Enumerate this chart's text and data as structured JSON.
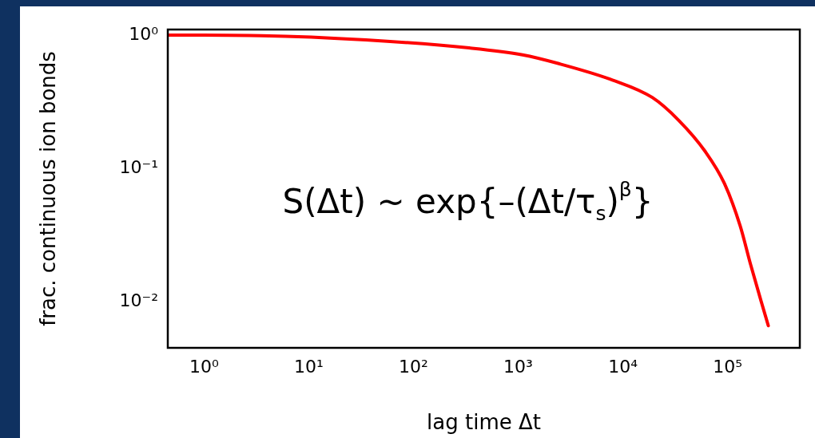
{
  "chart_data": {
    "type": "line",
    "xlabel": "lag time Δt",
    "ylabel": "frac. continuous ion bonds",
    "annotations": [
      "S(Δt) ~ exp{–(Δt/τ$_{s}$)$^{β}$}"
    ],
    "log": "xy",
    "grid": false,
    "legend": false,
    "marker": "none",
    "line_style": "solid",
    "xlim": [
      0.45,
      490000
    ],
    "ylim": [
      0.0045,
      1.1
    ],
    "xticks": [
      {
        "value": 1,
        "label": "10⁰"
      },
      {
        "value": 10,
        "label": "10¹"
      },
      {
        "value": 100,
        "label": "10²"
      },
      {
        "value": 1000,
        "label": "10³"
      },
      {
        "value": 10000,
        "label": "10⁴"
      },
      {
        "value": 100000,
        "label": "10⁵"
      }
    ],
    "yticks": [
      {
        "value": 0.01,
        "label": "10⁻²"
      },
      {
        "value": 0.1,
        "label": "10⁻¹"
      },
      {
        "value": 1,
        "label": "10⁰"
      }
    ],
    "series": [
      {
        "color": "#ff0000",
        "x": [
          0.45,
          3.5,
          35,
          340,
          1100,
          2450,
          7950,
          19100,
          34000,
          61100,
          93300,
          132000,
          166000,
          209000,
          245000
        ],
        "values": [
          1.0,
          0.99,
          0.92,
          0.8,
          0.71,
          0.61,
          0.46,
          0.34,
          0.23,
          0.134,
          0.077,
          0.037,
          0.019,
          0.0101,
          0.0066
        ]
      }
    ]
  }
}
